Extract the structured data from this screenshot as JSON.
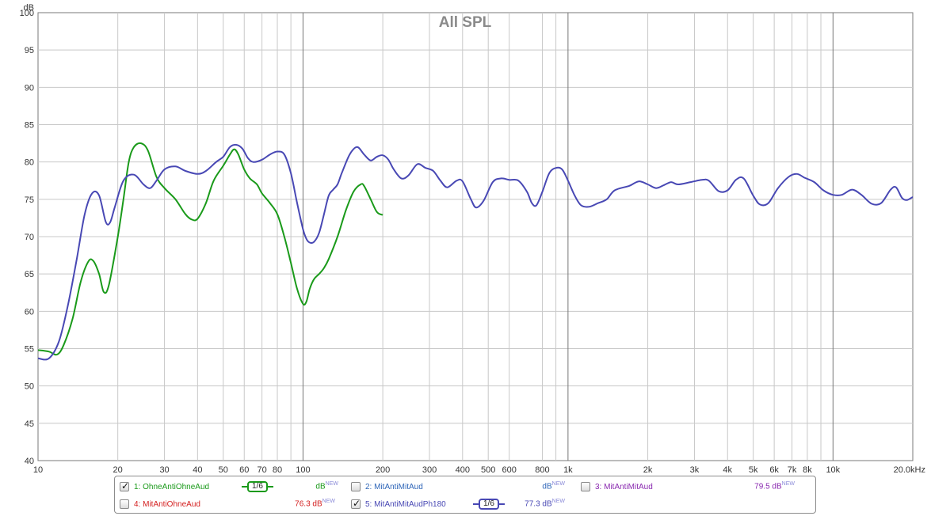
{
  "chart_data": {
    "type": "line",
    "title": "All SPL",
    "ylabel": "dB",
    "xlabel": "",
    "x_scale": "log",
    "xlim": [
      10,
      20000
    ],
    "ylim": [
      40,
      100
    ],
    "grid": true,
    "y_ticks": [
      40,
      45,
      50,
      55,
      60,
      65,
      70,
      75,
      80,
      85,
      90,
      95,
      100
    ],
    "x_ticks": [
      {
        "v": 10,
        "label": "10"
      },
      {
        "v": 20,
        "label": "20"
      },
      {
        "v": 30,
        "label": "30"
      },
      {
        "v": 40,
        "label": "40"
      },
      {
        "v": 50,
        "label": "50"
      },
      {
        "v": 60,
        "label": "60"
      },
      {
        "v": 70,
        "label": "70"
      },
      {
        "v": 80,
        "label": "80"
      },
      {
        "v": 100,
        "label": "100"
      },
      {
        "v": 200,
        "label": "200"
      },
      {
        "v": 300,
        "label": "300"
      },
      {
        "v": 400,
        "label": "400"
      },
      {
        "v": 500,
        "label": "500"
      },
      {
        "v": 600,
        "label": "600"
      },
      {
        "v": 800,
        "label": "800"
      },
      {
        "v": 1000,
        "label": "1k"
      },
      {
        "v": 2000,
        "label": "2k"
      },
      {
        "v": 3000,
        "label": "3k"
      },
      {
        "v": 4000,
        "label": "4k"
      },
      {
        "v": 5000,
        "label": "5k"
      },
      {
        "v": 6000,
        "label": "6k"
      },
      {
        "v": 7000,
        "label": "7k"
      },
      {
        "v": 8000,
        "label": "8k"
      },
      {
        "v": 10000,
        "label": "10k"
      },
      {
        "v": 20000,
        "label": "20.0kHz"
      }
    ],
    "series": [
      {
        "name": "1: OhneAntiOhneAud",
        "color": "#1a9a1a",
        "points": [
          [
            10,
            54.8
          ],
          [
            11,
            54.6
          ],
          [
            11.8,
            54.2
          ],
          [
            12.5,
            55.5
          ],
          [
            13.5,
            59
          ],
          [
            14.5,
            64
          ],
          [
            15.5,
            66.7
          ],
          [
            16.2,
            66.7
          ],
          [
            17,
            65
          ],
          [
            17.7,
            62.6
          ],
          [
            18.5,
            63.5
          ],
          [
            20,
            70
          ],
          [
            21,
            75
          ],
          [
            22,
            80
          ],
          [
            23,
            82
          ],
          [
            24.5,
            82.5
          ],
          [
            26,
            81.5
          ],
          [
            28,
            78
          ],
          [
            30,
            76.5
          ],
          [
            33,
            75
          ],
          [
            36,
            73
          ],
          [
            38,
            72.3
          ],
          [
            40,
            72.4
          ],
          [
            43,
            74.5
          ],
          [
            46,
            77.5
          ],
          [
            50,
            79.5
          ],
          [
            53,
            81
          ],
          [
            55,
            81.7
          ],
          [
            57,
            81
          ],
          [
            60,
            79
          ],
          [
            63,
            77.8
          ],
          [
            67,
            77
          ],
          [
            70,
            75.8
          ],
          [
            75,
            74.5
          ],
          [
            80,
            73
          ],
          [
            85,
            70
          ],
          [
            90,
            66.5
          ],
          [
            95,
            63
          ],
          [
            100,
            61
          ],
          [
            103,
            61.3
          ],
          [
            106,
            63
          ],
          [
            110,
            64.3
          ],
          [
            115,
            65
          ],
          [
            120,
            65.8
          ],
          [
            125,
            67
          ],
          [
            135,
            70
          ],
          [
            145,
            73.5
          ],
          [
            155,
            76
          ],
          [
            165,
            77
          ],
          [
            170,
            76.8
          ],
          [
            180,
            75
          ],
          [
            190,
            73.3
          ],
          [
            200,
            72.9
          ]
        ]
      },
      {
        "name": "5: MitAntiMitAudPh180",
        "color": "#4848b4",
        "points": [
          [
            10,
            53.7
          ],
          [
            11,
            53.7
          ],
          [
            12,
            56
          ],
          [
            13,
            61
          ],
          [
            14,
            67
          ],
          [
            15,
            73
          ],
          [
            16,
            75.8
          ],
          [
            17,
            75.5
          ],
          [
            18,
            72
          ],
          [
            18.7,
            71.9
          ],
          [
            19.5,
            74
          ],
          [
            21,
            77.5
          ],
          [
            23,
            78.3
          ],
          [
            25,
            77
          ],
          [
            26.5,
            76.5
          ],
          [
            28,
            77.5
          ],
          [
            30,
            79
          ],
          [
            33,
            79.4
          ],
          [
            36,
            78.8
          ],
          [
            40,
            78.4
          ],
          [
            43,
            78.8
          ],
          [
            47,
            80
          ],
          [
            50,
            80.7
          ],
          [
            53,
            82
          ],
          [
            56,
            82.3
          ],
          [
            59,
            81.8
          ],
          [
            62,
            80.5
          ],
          [
            65,
            80
          ],
          [
            70,
            80.3
          ],
          [
            75,
            81
          ],
          [
            80,
            81.4
          ],
          [
            85,
            81
          ],
          [
            90,
            78.5
          ],
          [
            95,
            74.5
          ],
          [
            100,
            71
          ],
          [
            103,
            69.7
          ],
          [
            106,
            69.2
          ],
          [
            110,
            69.3
          ],
          [
            115,
            70.5
          ],
          [
            120,
            73
          ],
          [
            125,
            75.5
          ],
          [
            130,
            76.3
          ],
          [
            135,
            77
          ],
          [
            140,
            78.5
          ],
          [
            150,
            81
          ],
          [
            160,
            82
          ],
          [
            170,
            81
          ],
          [
            180,
            80.2
          ],
          [
            190,
            80.7
          ],
          [
            200,
            80.9
          ],
          [
            210,
            80.3
          ],
          [
            220,
            79
          ],
          [
            235,
            77.8
          ],
          [
            250,
            78.2
          ],
          [
            270,
            79.7
          ],
          [
            290,
            79.2
          ],
          [
            310,
            78.8
          ],
          [
            330,
            77.5
          ],
          [
            350,
            76.6
          ],
          [
            380,
            77.5
          ],
          [
            400,
            77.4
          ],
          [
            430,
            75
          ],
          [
            450,
            73.9
          ],
          [
            480,
            74.8
          ],
          [
            520,
            77.3
          ],
          [
            560,
            77.8
          ],
          [
            600,
            77.6
          ],
          [
            650,
            77.5
          ],
          [
            700,
            76
          ],
          [
            730,
            74.5
          ],
          [
            760,
            74.2
          ],
          [
            800,
            76
          ],
          [
            850,
            78.5
          ],
          [
            900,
            79.2
          ],
          [
            950,
            79
          ],
          [
            1000,
            77.5
          ],
          [
            1060,
            75.5
          ],
          [
            1120,
            74.2
          ],
          [
            1200,
            74
          ],
          [
            1300,
            74.5
          ],
          [
            1400,
            75
          ],
          [
            1500,
            76.2
          ],
          [
            1700,
            76.8
          ],
          [
            1850,
            77.4
          ],
          [
            2000,
            77
          ],
          [
            2150,
            76.5
          ],
          [
            2300,
            76.9
          ],
          [
            2450,
            77.3
          ],
          [
            2600,
            77
          ],
          [
            2900,
            77.3
          ],
          [
            3200,
            77.6
          ],
          [
            3400,
            77.5
          ],
          [
            3700,
            76.1
          ],
          [
            4000,
            76.2
          ],
          [
            4300,
            77.6
          ],
          [
            4600,
            77.8
          ],
          [
            5000,
            75.5
          ],
          [
            5300,
            74.3
          ],
          [
            5700,
            74.5
          ],
          [
            6200,
            76.5
          ],
          [
            6800,
            78
          ],
          [
            7300,
            78.4
          ],
          [
            7800,
            77.9
          ],
          [
            8500,
            77.3
          ],
          [
            9200,
            76.2
          ],
          [
            10000,
            75.6
          ],
          [
            10800,
            75.6
          ],
          [
            11800,
            76.3
          ],
          [
            12800,
            75.6
          ],
          [
            14000,
            74.4
          ],
          [
            15200,
            74.5
          ],
          [
            16500,
            76.3
          ],
          [
            17300,
            76.6
          ],
          [
            18200,
            75.2
          ],
          [
            19000,
            74.9
          ],
          [
            20000,
            75.3
          ],
          [
            21500,
            75.8
          ],
          [
            22500,
            76
          ]
        ]
      }
    ]
  },
  "legend": {
    "items": [
      {
        "label": "1: OhneAntiOhneAud",
        "checked": true,
        "color": "#1a9a1a",
        "value": "",
        "unit": "dB",
        "sup": "NEW",
        "smoothing": "1/6"
      },
      {
        "label": "2: MitAntiMitAud",
        "checked": false,
        "color": "#2f66b8",
        "value": "",
        "unit": "dB",
        "sup": "NEW",
        "smoothing": ""
      },
      {
        "label": "3: MitAntiMitAud",
        "checked": false,
        "color": "#8a2ab0",
        "value": "79.5",
        "unit": "dB",
        "sup": "NEW",
        "smoothing": ""
      },
      {
        "label": "4: MitAntiOhneAud",
        "checked": false,
        "color": "#d42020",
        "value": "76.3",
        "unit": "dB",
        "sup": "NEW",
        "smoothing": ""
      },
      {
        "label": "5: MitAntiMitAudPh180",
        "checked": true,
        "color": "#4848b4",
        "value": "77.3",
        "unit": "dB",
        "sup": "NEW",
        "smoothing": "1/6"
      }
    ]
  }
}
